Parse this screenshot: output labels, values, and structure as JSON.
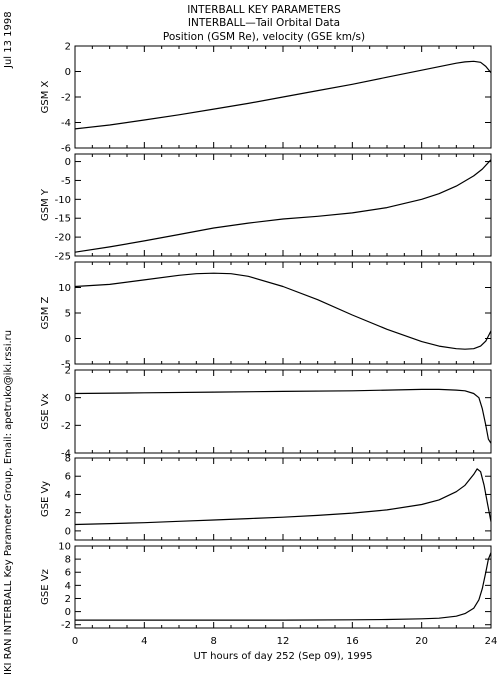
{
  "header": {
    "title_lines": [
      "INTERBALL KEY PARAMETERS",
      "INTERBALL—Tail Orbital Data",
      "Position (GSM Re), velocity (GSE km/s)"
    ]
  },
  "side_text": {
    "date": "Jul 13 1998",
    "credit": "IKI RAN INTERBALL Key Parameter Group, Email: apetruko@iki.rssi.ru"
  },
  "chart_data": {
    "type": "line",
    "xlabel": "UT hours of day 252 (Sep 09), 1995",
    "x_ticks": [
      0,
      4,
      8,
      12,
      16,
      20,
      24
    ],
    "xlim": [
      0,
      24
    ],
    "colors": {
      "line": "#000000",
      "frame": "#000000",
      "background": "#ffffff"
    },
    "panels": [
      {
        "ylabel": "GSM X",
        "ylim": [
          -6,
          2
        ],
        "y_ticks": [
          -6,
          -4,
          -2,
          0,
          2
        ],
        "x": [
          0,
          2,
          4,
          6,
          8,
          10,
          12,
          14,
          16,
          18,
          20,
          21,
          22,
          22.5,
          23,
          23.4,
          23.7,
          24
        ],
        "y": [
          -4.5,
          -4.2,
          -3.8,
          -3.4,
          -2.95,
          -2.5,
          -2.0,
          -1.5,
          -1.0,
          -0.45,
          0.1,
          0.38,
          0.65,
          0.75,
          0.8,
          0.72,
          0.4,
          -0.1
        ]
      },
      {
        "ylabel": "GSM Y",
        "ylim": [
          -25,
          2
        ],
        "y_ticks": [
          -25,
          -20,
          -15,
          -10,
          -5,
          0
        ],
        "x": [
          0,
          2,
          4,
          6,
          8,
          10,
          12,
          14,
          16,
          18,
          20,
          21,
          22,
          23,
          23.5,
          24
        ],
        "y": [
          -24,
          -22.6,
          -21,
          -19.3,
          -17.6,
          -16.3,
          -15.2,
          -14.5,
          -13.6,
          -12.2,
          -10,
          -8.5,
          -6.5,
          -3.8,
          -2,
          0.5
        ]
      },
      {
        "ylabel": "GSM Z",
        "ylim": [
          -5,
          15
        ],
        "y_ticks": [
          -5,
          0,
          5,
          10
        ],
        "x": [
          0,
          2,
          4,
          6,
          7,
          8,
          9,
          10,
          12,
          14,
          16,
          18,
          20,
          21,
          22,
          22.5,
          23,
          23.4,
          23.7,
          24
        ],
        "y": [
          10.2,
          10.6,
          11.5,
          12.4,
          12.7,
          12.8,
          12.7,
          12.2,
          10.2,
          7.6,
          4.6,
          1.8,
          -0.6,
          -1.5,
          -2,
          -2.1,
          -2,
          -1.5,
          -0.5,
          1.5
        ]
      },
      {
        "ylabel": "GSE Vx",
        "ylim": [
          -4,
          2
        ],
        "y_ticks": [
          -4,
          -2,
          0,
          2
        ],
        "x": [
          0,
          4,
          8,
          12,
          16,
          18,
          20,
          21,
          22,
          22.5,
          23,
          23.3,
          23.5,
          23.7,
          23.85,
          24
        ],
        "y": [
          0.3,
          0.35,
          0.4,
          0.45,
          0.5,
          0.55,
          0.6,
          0.6,
          0.55,
          0.5,
          0.3,
          0,
          -0.8,
          -2,
          -3,
          -3.3
        ]
      },
      {
        "ylabel": "GSE Vy",
        "ylim": [
          -1,
          8
        ],
        "y_ticks": [
          0,
          2,
          4,
          6,
          8
        ],
        "x": [
          0,
          2,
          4,
          6,
          8,
          10,
          12,
          14,
          16,
          18,
          20,
          21,
          22,
          22.5,
          23,
          23.2,
          23.4,
          23.6,
          23.8,
          24
        ],
        "y": [
          0.7,
          0.8,
          0.9,
          1.05,
          1.2,
          1.35,
          1.5,
          1.7,
          1.95,
          2.3,
          2.9,
          3.4,
          4.3,
          5.0,
          6.2,
          6.8,
          6.5,
          5.0,
          3.0,
          1.0
        ]
      },
      {
        "ylabel": "GSE Vz",
        "ylim": [
          -2.5,
          10
        ],
        "y_ticks": [
          -2,
          0,
          2,
          4,
          6,
          8,
          10
        ],
        "x": [
          0,
          4,
          8,
          12,
          16,
          18,
          20,
          21,
          22,
          22.5,
          23,
          23.3,
          23.5,
          23.7,
          23.85,
          24
        ],
        "y": [
          -1.3,
          -1.3,
          -1.3,
          -1.3,
          -1.25,
          -1.2,
          -1.1,
          -1.0,
          -0.7,
          -0.3,
          0.5,
          1.8,
          3.5,
          6.0,
          8.0,
          9.0
        ]
      }
    ]
  }
}
